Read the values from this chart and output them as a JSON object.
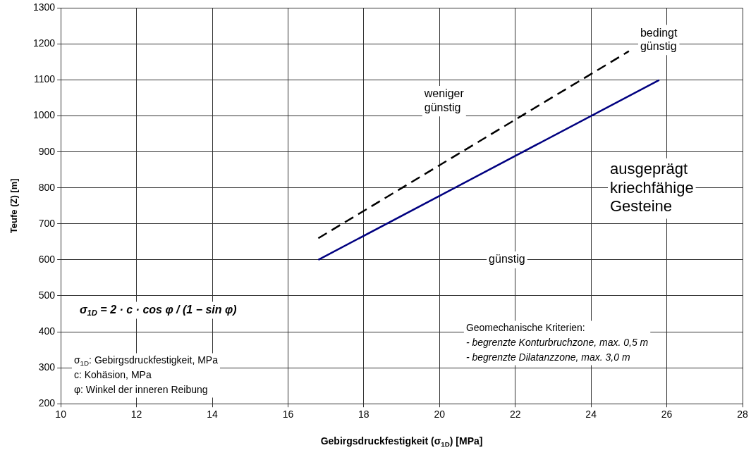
{
  "chart_data": {
    "type": "line",
    "xlabel": "Gebirgsdruckfestigkeit (σ$_{1D}$) [MPa]",
    "ylabel": "Teufe (Z) [m]",
    "xlim": [
      10,
      28
    ],
    "xticks": [
      10,
      12,
      14,
      16,
      18,
      20,
      22,
      24,
      26,
      28
    ],
    "ylim": [
      200,
      1300
    ],
    "yticks": [
      200,
      300,
      400,
      500,
      600,
      700,
      800,
      900,
      1000,
      1100,
      1200,
      1300
    ],
    "grid": true,
    "marker": "none",
    "series": [
      {
        "color": "#000000",
        "x": [
          16.8,
          25
        ],
        "values": [
          660,
          1180
        ],
        "line_style": "dashed"
      },
      {
        "color": "#000080",
        "x": [
          16.8,
          25.8
        ],
        "values": [
          600,
          1100
        ],
        "line_style": "solid"
      }
    ],
    "annotations": [
      "bedingt\ngünstig",
      "weniger\ngünstig",
      "ausgeprägt\nkriechfähige\nGesteine",
      "günstig",
      "σ$_{1D}$ = 2 · c · cos φ / (1 − sin φ)",
      "σ$_{1D}$: Gebirgsdruckfestigkeit, MPa\nc: Kohäsion, MPa\nφ: Winkel der inneren Reibung",
      "Geomechanische Kriterien:\n- begrenzte Konturbruchzone, max. 0,5 m\n- begrenzte Dilatanzzone, max. 3,0 m"
    ]
  }
}
